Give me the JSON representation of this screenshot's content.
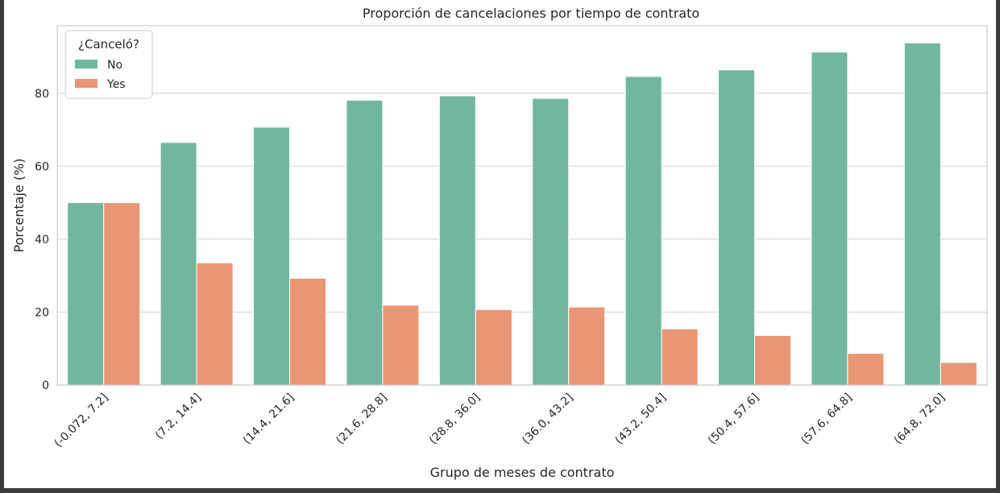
{
  "chart_data": {
    "type": "bar",
    "title": "Proporción de cancelaciones por tiempo de contrato",
    "xlabel": "Grupo de meses de contrato",
    "ylabel": "Porcentaje (%)",
    "categories": [
      "(-0.072, 7.2]",
      "(7.2, 14.4]",
      "(14.4, 21.6]",
      "(21.6, 28.8]",
      "(28.8, 36.0]",
      "(36.0, 43.2]",
      "(43.2, 50.4]",
      "(50.4, 57.6]",
      "(57.6, 64.8]",
      "(64.8, 72.0]"
    ],
    "series": [
      {
        "name": "No",
        "color": "#72b6a1",
        "values": [
          50.0,
          66.5,
          70.7,
          78.1,
          79.3,
          78.6,
          84.6,
          86.4,
          91.3,
          93.8
        ]
      },
      {
        "name": "Yes",
        "color": "#e99675",
        "values": [
          50.0,
          33.5,
          29.3,
          21.9,
          20.7,
          21.4,
          15.4,
          13.6,
          8.7,
          6.2
        ]
      }
    ],
    "ylim": [
      0,
      98.5
    ],
    "yticks": [
      0,
      20,
      40,
      60,
      80
    ],
    "grid": true,
    "legend": {
      "title": "¿Canceló?",
      "placement": "top-left"
    }
  }
}
